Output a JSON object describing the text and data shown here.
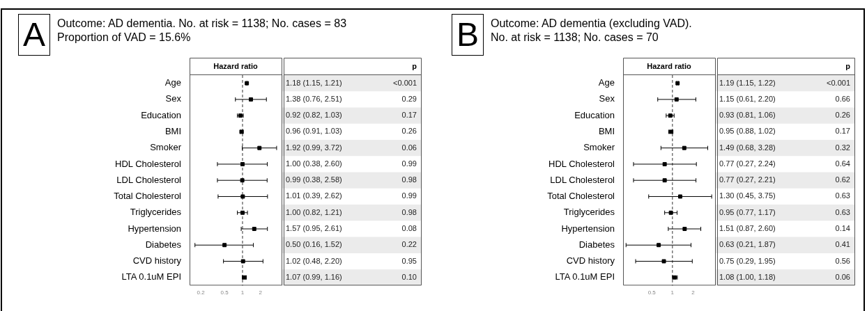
{
  "chart_data": [
    {
      "type": "scatter",
      "orientation": "horizontal",
      "title": "Outcome: AD dementia. No. at risk = 1138; No. cases = 83\nProportion of VAD = 15.6%",
      "xlabel": "Hazard ratio",
      "categories": [
        "Age",
        "Sex",
        "Education",
        "BMI",
        "Smoker",
        "HDL Cholesterol",
        "LDL Cholesterol",
        "Total Cholesterol",
        "Triglycerides",
        "Hypertension",
        "Diabetes",
        "CVD history",
        "LTA 0.1uM EPI"
      ],
      "values": [
        1.18,
        1.38,
        0.92,
        0.96,
        1.92,
        1.0,
        0.99,
        1.01,
        1.0,
        1.57,
        0.5,
        1.02,
        1.07
      ],
      "errors": [
        [
          1.15,
          1.21
        ],
        [
          0.76,
          2.51
        ],
        [
          0.82,
          1.03
        ],
        [
          0.91,
          1.03
        ],
        [
          0.99,
          3.72
        ],
        [
          0.38,
          2.6
        ],
        [
          0.38,
          2.58
        ],
        [
          0.39,
          2.62
        ],
        [
          0.82,
          1.21
        ],
        [
          0.95,
          2.61
        ],
        [
          0.16,
          1.52
        ],
        [
          0.48,
          2.2
        ],
        [
          0.99,
          1.16
        ]
      ],
      "value_labels": [
        "1.18 (1.15, 1.21)",
        "1.38 (0.76, 2.51)",
        "0.92 (0.82, 1.03)",
        "0.96 (0.91, 1.03)",
        "1.92 (0.99, 3.72)",
        "1.00 (0.38, 2.60)",
        "0.99 (0.38, 2.58)",
        "1.01 (0.39, 2.62)",
        "1.00 (0.82, 1.21)",
        "1.57 (0.95, 2.61)",
        "0.50 (0.16, 1.52)",
        "1.02 (0.48, 2.20)",
        "1.07 (0.99, 1.16)"
      ],
      "color": "#000000",
      "marker": "square",
      "log": "x",
      "xlim": [
        0.13,
        4.5
      ],
      "xticks": [
        0.2,
        0.5,
        1,
        2
      ],
      "grid": false,
      "legend": false,
      "ref_lines": [
        {
          "axis": "x",
          "value": 1,
          "line_style": "dashed",
          "color": "#555555"
        }
      ],
      "annotations": [
        "A",
        "p",
        "<0.001",
        "0.29",
        "0.17",
        "0.26",
        "0.06",
        "0.99",
        "0.98",
        "0.99",
        "0.98",
        "0.08",
        "0.22",
        "0.95",
        "0.10"
      ]
    },
    {
      "type": "scatter",
      "orientation": "horizontal",
      "title": "Outcome: AD dementia (excluding VAD).\nNo. at risk = 1138; No. cases = 70",
      "xlabel": "Hazard ratio",
      "categories": [
        "Age",
        "Sex",
        "Education",
        "BMI",
        "Smoker",
        "HDL Cholesterol",
        "LDL Cholesterol",
        "Total Cholesterol",
        "Triglycerides",
        "Hypertension",
        "Diabetes",
        "CVD history",
        "LTA 0.1uM EPI"
      ],
      "values": [
        1.19,
        1.15,
        0.93,
        0.95,
        1.49,
        0.77,
        0.77,
        1.3,
        0.95,
        1.51,
        0.63,
        0.75,
        1.08
      ],
      "errors": [
        [
          1.15,
          1.22
        ],
        [
          0.61,
          2.2
        ],
        [
          0.81,
          1.06
        ],
        [
          0.88,
          1.02
        ],
        [
          0.68,
          3.28
        ],
        [
          0.27,
          2.24
        ],
        [
          0.27,
          2.21
        ],
        [
          0.45,
          3.75
        ],
        [
          0.77,
          1.17
        ],
        [
          0.87,
          2.6
        ],
        [
          0.21,
          1.87
        ],
        [
          0.29,
          1.95
        ],
        [
          1.0,
          1.18
        ]
      ],
      "value_labels": [
        "1.19 (1.15, 1.22)",
        "1.15 (0.61, 2.20)",
        "0.93 (0.81, 1.06)",
        "0.95 (0.88, 1.02)",
        "1.49 (0.68, 3.28)",
        "0.77 (0.27, 2.24)",
        "0.77 (0.27, 2.21)",
        "1.30 (0.45, 3.75)",
        "0.95 (0.77, 1.17)",
        "1.51 (0.87, 2.60)",
        "0.63 (0.21, 1.87)",
        "0.75 (0.29, 1.95)",
        "1.08 (1.00, 1.18)"
      ],
      "color": "#000000",
      "marker": "square",
      "log": "x",
      "xlim": [
        0.19,
        4.2
      ],
      "xticks": [
        0.5,
        1,
        2
      ],
      "grid": false,
      "legend": false,
      "ref_lines": [
        {
          "axis": "x",
          "value": 1,
          "line_style": "dashed",
          "color": "#555555"
        }
      ],
      "annotations": [
        "B",
        "p",
        "<0.001",
        "0.66",
        "0.26",
        "0.17",
        "0.32",
        "0.64",
        "0.62",
        "0.63",
        "0.63",
        "0.14",
        "0.41",
        "0.56",
        "0.06"
      ]
    }
  ]
}
